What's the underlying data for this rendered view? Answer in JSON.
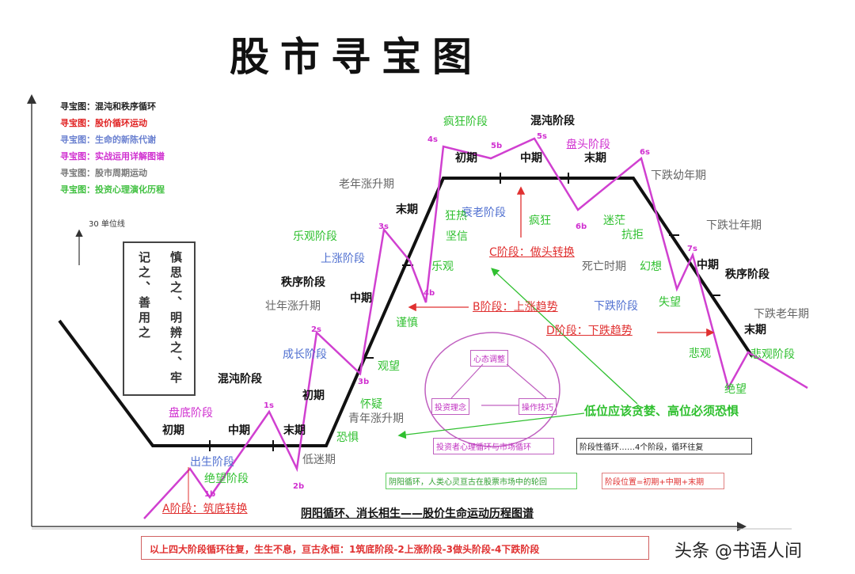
{
  "title": "股市寻宝图",
  "legend": [
    {
      "text": "寻宝图：混沌和秩序循环",
      "color": "#222222"
    },
    {
      "text": "寻宝图：股价循环运动",
      "color": "#e02020"
    },
    {
      "text": "寻宝图：生命的新陈代谢",
      "color": "#6a80d0"
    },
    {
      "text": "寻宝图：实战运用详解图谱",
      "color": "#d030d0"
    },
    {
      "text": "寻宝图：股市周期运动",
      "color": "#777777"
    },
    {
      "text": "寻宝图：投资心理演化历程",
      "color": "#40c040"
    }
  ],
  "unit_line": "30 单位线",
  "motto": {
    "col1": "慎思之、明辨之、牢",
    "col2": "记之、善用之"
  },
  "labels": {
    "black": [
      "初期",
      "中期",
      "末期",
      "混沌阶段",
      "初期",
      "中期",
      "末期",
      "秩序阶段",
      "初期",
      "中期",
      "末期",
      "混沌阶段",
      "中期",
      "秩序阶段",
      "末期"
    ],
    "gray": [
      "老年涨升期",
      "壮年涨升期",
      "青年涨升期",
      "低迷期",
      "下跌幼年期",
      "下跌壮年期",
      "下跌老年期",
      "死亡时期"
    ],
    "blue": [
      "出生阶段",
      "成长阶段",
      "上涨阶段",
      "衰老阶段",
      "下跌阶段"
    ],
    "magenta": [
      "盘底阶段",
      "盘头阶段"
    ],
    "green": [
      "绝望阶段",
      "恐惧",
      "怀疑",
      "观望",
      "谨慎",
      "乐观",
      "坚信",
      "狂热",
      "疯狂阶段",
      "疯狂",
      "迷茫",
      "抗拒",
      "幻想",
      "失望",
      "悲观",
      "绝望",
      "悲观阶段",
      "乐观阶段"
    ],
    "stages": [
      "A阶段：筑底转换",
      "B阶段：上涨趋势",
      "C阶段：做头转换",
      "D阶段：下跌趋势"
    ],
    "points": [
      "1b",
      "1s",
      "2b",
      "2s",
      "3b",
      "3s",
      "4b",
      "4s",
      "5b",
      "5s",
      "6b",
      "6s",
      "7s"
    ]
  },
  "ellipse": {
    "top": "心态调整",
    "left": "投资理念",
    "right": "操作技巧"
  },
  "slogan": "低位应该贪婪、高位必须恐惧",
  "boxes": {
    "psych_cycle": "投资者心理循环与市场循环",
    "stage_cycle": "阶段性循环……4个阶段，循环往复",
    "soul_cycle": "阴阳循环，人类心灵亘古在股票市场中的轮回",
    "stage_pos": "阶段位置=初期+中期+末期"
  },
  "caption": "阴阳循环、消长相生——股价生命运动历程图谱",
  "footer": "以上四大阶段循环往复，生生不息，亘古永恒：1筑底阶段-2上涨阶段-3做头阶段-4下跌阶段",
  "watermark": "头条 @书语人间",
  "colors": {
    "trend": "#111111",
    "price": "#d040d0",
    "green": "#30c030",
    "red": "#e03030",
    "blue": "#5070d0",
    "gray": "#666666"
  }
}
